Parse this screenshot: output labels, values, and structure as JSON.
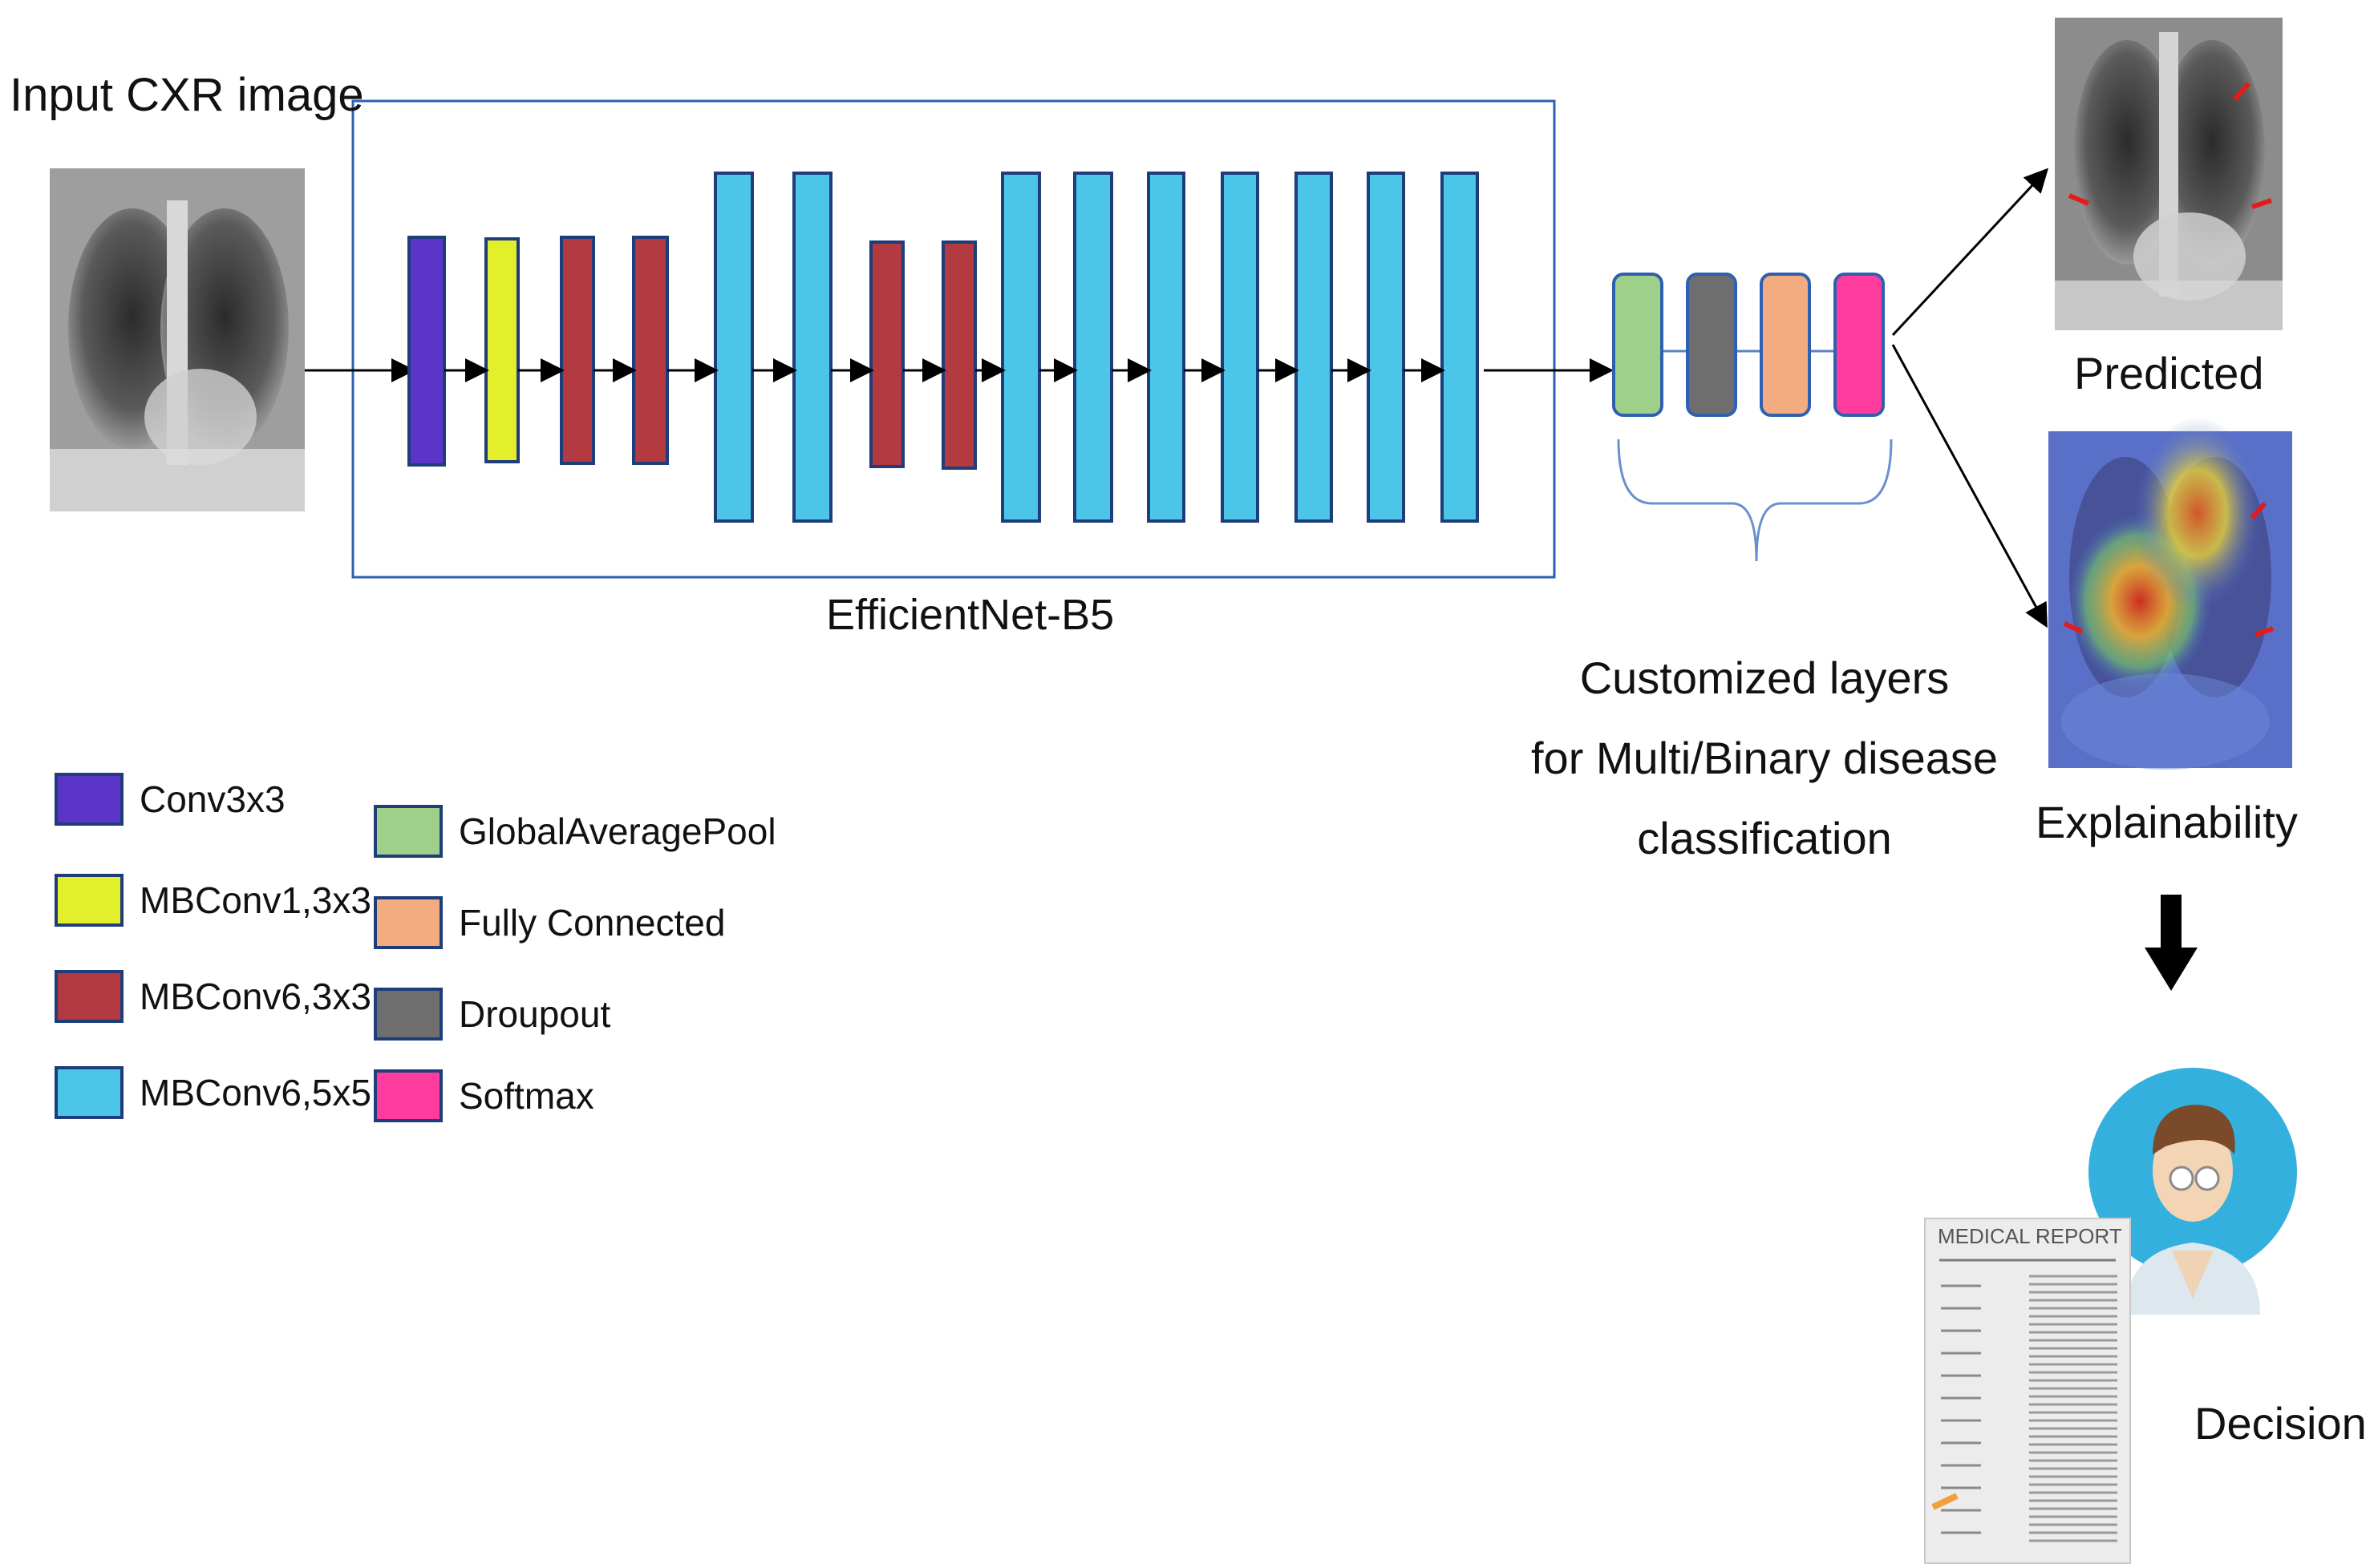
{
  "title_input": "Input CXR image",
  "backbone_label": "EfficientNet-B5",
  "backbone_blocks": [
    "Conv3x3",
    "MBConv1,3x3",
    "MBConv6,3x3",
    "MBConv6,3x3",
    "MBConv6,5x5",
    "MBConv6,5x5",
    "MBConv6,3x3",
    "MBConv6,3x3",
    "MBConv6,5x5",
    "MBConv6,5x5",
    "MBConv6,5x5",
    "MBConv6,5x5",
    "MBConv6,5x5",
    "MBConv6,5x5",
    "MBConv6,5x5"
  ],
  "custom_layers": [
    "GlobalAveragePool",
    "Droupout",
    "Fully Connected",
    "Softmax"
  ],
  "custom_caption": {
    "line1": "Customized layers",
    "line2": "for Multi/Binary disease",
    "line3": "classification"
  },
  "outputs": {
    "predicted": "Predicted",
    "explainability": "Explainability",
    "decision": "Decision",
    "report_title": "MEDICAL REPORT"
  },
  "legend": [
    {
      "label": "Conv3x3",
      "color": "#5b35c8"
    },
    {
      "label": "MBConv1,3x3",
      "color": "#e4ef2c"
    },
    {
      "label": "MBConv6,3x3",
      "color": "#b23a40"
    },
    {
      "label": "MBConv6,5x5",
      "color": "#4bc6e8"
    },
    {
      "label": "GlobalAveragePool",
      "color": "#9fd08a"
    },
    {
      "label": "Fully Connected",
      "color": "#f3ac80"
    },
    {
      "label": "Droupout",
      "color": "#6e6e6e"
    },
    {
      "label": "Softmax",
      "color": "#ff3c9e"
    }
  ],
  "colors": {
    "border": "#1f3d7a",
    "box_outline": "#2f5fb0",
    "brace": "#6a8fd0",
    "arrow": "#000000",
    "doctor_circle": "#33b0de"
  }
}
